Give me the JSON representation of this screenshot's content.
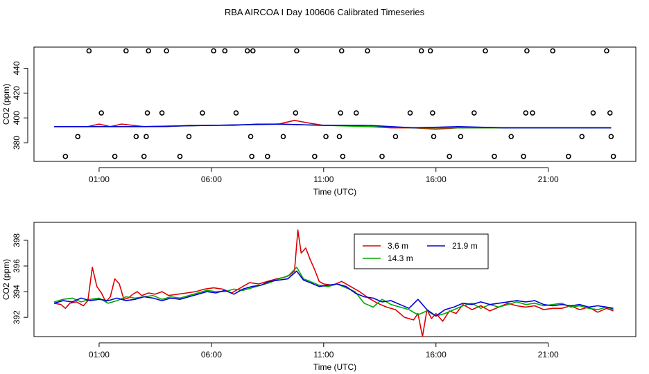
{
  "figure": {
    "title": "RBA AIRCOA I  Day 100606  Calibrated Timeseries"
  },
  "chart_data": [
    {
      "type": "line",
      "xlabel": "Time (UTC)",
      "ylabel": "CO2 (ppm)",
      "x_ticks": [
        {
          "label": "01:00",
          "value": 1
        },
        {
          "label": "06:00",
          "value": 6
        },
        {
          "label": "11:00",
          "value": 11
        },
        {
          "label": "16:00",
          "value": 16
        },
        {
          "label": "21:00",
          "value": 21
        }
      ],
      "y_ticks": [
        {
          "label": "380",
          "value": 380
        },
        {
          "label": "400",
          "value": 400
        },
        {
          "label": "420",
          "value": 420
        },
        {
          "label": "440",
          "value": 440
        }
      ],
      "xlim": [
        -1.9,
        24.9
      ],
      "ylim": [
        365,
        457
      ],
      "series": [
        {
          "color": "#dd0000",
          "x": [
            -1,
            0.5,
            1,
            1.5,
            2,
            3,
            4,
            5,
            6,
            7,
            8,
            9,
            9.7,
            10,
            10.3,
            11,
            12,
            13,
            14,
            15,
            16,
            17,
            18,
            19,
            20,
            21,
            22,
            23,
            23.8
          ],
          "values": [
            393,
            393,
            395,
            393,
            395,
            393,
            393,
            394,
            394,
            394,
            395,
            395,
            398,
            397,
            396,
            394,
            394,
            393,
            392,
            392,
            391,
            392,
            392,
            392,
            392,
            392,
            392,
            392,
            392
          ]
        },
        {
          "color": "#00aa00",
          "x": [
            -1,
            1,
            3,
            6,
            9,
            11,
            13,
            15,
            17,
            19,
            21,
            23.8
          ],
          "values": [
            393,
            393,
            393,
            394,
            395,
            394,
            393,
            392,
            392,
            392,
            392,
            392
          ]
        },
        {
          "color": "#0000dd",
          "x": [
            -1,
            1,
            3,
            6,
            9,
            11,
            13,
            15,
            17,
            19,
            21,
            23.8
          ],
          "values": [
            393,
            393,
            393,
            394,
            395,
            394,
            394,
            392,
            393,
            392,
            392,
            392
          ]
        },
        {
          "color": "#000000",
          "marker": "circle",
          "x": [
            -0.5,
            0.05,
            0.55,
            1.1,
            1.7,
            2.2,
            2.65,
            3.0,
            3.1,
            3.15,
            3.2,
            3.8,
            4.0,
            4.6,
            5.0,
            5.6,
            6.1,
            6.6,
            7.1,
            7.6,
            7.75,
            7.8,
            7.85,
            8.5,
            9.2,
            9.75,
            9.8,
            10.6,
            11.1,
            11.7,
            11.75,
            11.8,
            11.85,
            12.45,
            12.95,
            13.6,
            14.2,
            14.85,
            15.35,
            15.75,
            15.85,
            15.9,
            16.6,
            17.1,
            17.7,
            18.2,
            18.6,
            19.35,
            19.9,
            20.0,
            20.05,
            20.3,
            21.2,
            21.9,
            22.5,
            23.0,
            23.6,
            23.75,
            23.8,
            23.9
          ],
          "values": [
            369,
            385,
            454,
            404,
            369,
            454,
            385,
            369,
            385,
            404,
            454,
            404,
            454,
            369,
            385,
            404,
            454,
            454,
            404,
            454,
            385,
            369,
            454,
            369,
            385,
            404,
            454,
            369,
            385,
            385,
            404,
            454,
            369,
            404,
            454,
            369,
            385,
            404,
            454,
            454,
            404,
            385,
            369,
            385,
            404,
            454,
            369,
            385,
            369,
            404,
            454,
            404,
            454,
            369,
            385,
            404,
            454,
            404,
            385,
            369
          ]
        }
      ]
    },
    {
      "type": "line",
      "xlabel": "Time (UTC)",
      "ylabel": "CO2 (ppm)",
      "x_ticks": [
        {
          "label": "01:00",
          "value": 1
        },
        {
          "label": "06:00",
          "value": 6
        },
        {
          "label": "11:00",
          "value": 11
        },
        {
          "label": "16:00",
          "value": 16
        },
        {
          "label": "21:00",
          "value": 21
        }
      ],
      "y_ticks": [
        {
          "label": "392",
          "value": 392
        },
        {
          "label": "394",
          "value": 394
        },
        {
          "label": "396",
          "value": 396
        },
        {
          "label": "398",
          "value": 398
        }
      ],
      "xlim": [
        -1.9,
        24.9
      ],
      "ylim": [
        390.5,
        399.4
      ],
      "legend": "top-center",
      "series": [
        {
          "name": "3.6 m",
          "color": "#dd0000",
          "x": [
            -1,
            -0.7,
            -0.5,
            -0.3,
            0,
            0.3,
            0.5,
            0.7,
            0.9,
            1.1,
            1.3,
            1.5,
            1.7,
            1.9,
            2.1,
            2.3,
            2.5,
            2.7,
            2.9,
            3.2,
            3.5,
            3.8,
            4.1,
            4.5,
            4.9,
            5.3,
            5.7,
            6.1,
            6.5,
            6.9,
            7.3,
            7.7,
            8.1,
            8.5,
            8.9,
            9.2,
            9.5,
            9.7,
            9.85,
            10.0,
            10.2,
            10.4,
            10.6,
            10.8,
            11.0,
            11.4,
            11.8,
            12.2,
            12.6,
            13.0,
            13.4,
            13.8,
            14.2,
            14.6,
            15.0,
            15.2,
            15.4,
            15.6,
            15.8,
            16.0,
            16.3,
            16.6,
            16.9,
            17.2,
            17.6,
            18.0,
            18.4,
            18.8,
            19.2,
            19.6,
            20.0,
            20.4,
            20.8,
            21.2,
            21.6,
            22.0,
            22.4,
            22.8,
            23.2,
            23.6,
            23.9
          ],
          "values": [
            393.1,
            393.0,
            392.7,
            393.1,
            393.2,
            392.9,
            393.3,
            395.9,
            394.4,
            393.9,
            393.2,
            393.6,
            395.0,
            394.6,
            393.4,
            393.5,
            393.8,
            394.0,
            393.7,
            393.9,
            393.8,
            394.0,
            393.7,
            393.8,
            393.9,
            394.0,
            394.2,
            394.3,
            394.2,
            393.9,
            394.3,
            394.7,
            394.6,
            394.8,
            395.0,
            395.1,
            395.3,
            395.6,
            398.8,
            397.0,
            397.4,
            396.5,
            395.7,
            394.8,
            394.6,
            394.5,
            394.8,
            394.4,
            394.0,
            393.5,
            393.1,
            392.8,
            392.6,
            392.0,
            391.8,
            392.3,
            390.5,
            392.6,
            391.9,
            392.3,
            391.7,
            392.5,
            392.3,
            393.0,
            392.6,
            392.9,
            392.5,
            392.8,
            393.1,
            392.9,
            392.8,
            392.9,
            392.6,
            392.7,
            392.7,
            392.9,
            392.6,
            392.8,
            392.4,
            392.7,
            392.5
          ]
        },
        {
          "name": "14.3 m",
          "color": "#00aa00",
          "x": [
            -1,
            -0.6,
            -0.2,
            0.2,
            0.6,
            1.0,
            1.4,
            1.8,
            2.2,
            2.6,
            3.0,
            3.4,
            3.8,
            4.2,
            4.6,
            5.0,
            5.4,
            5.8,
            6.2,
            6.6,
            7.0,
            7.4,
            7.8,
            8.2,
            8.6,
            9.0,
            9.4,
            9.8,
            10.1,
            10.4,
            10.8,
            11.2,
            11.6,
            12.0,
            12.4,
            12.8,
            13.2,
            13.6,
            14.0,
            14.4,
            14.8,
            15.2,
            15.6,
            16.0,
            16.4,
            16.8,
            17.2,
            17.6,
            18.0,
            18.4,
            18.8,
            19.2,
            19.6,
            20.0,
            20.4,
            20.8,
            21.2,
            21.6,
            22.0,
            22.4,
            22.8,
            23.2,
            23.6,
            23.9
          ],
          "values": [
            393.2,
            393.4,
            393.5,
            393.2,
            393.4,
            393.5,
            393.1,
            393.3,
            393.6,
            393.5,
            393.6,
            393.7,
            393.4,
            393.6,
            393.5,
            393.7,
            393.9,
            394.1,
            394.0,
            394.0,
            394.2,
            394.1,
            394.3,
            394.5,
            394.7,
            395.0,
            395.2,
            395.9,
            395.0,
            394.8,
            394.5,
            394.4,
            394.6,
            394.3,
            394.0,
            393.1,
            392.8,
            393.4,
            393.0,
            392.8,
            392.6,
            392.2,
            392.5,
            392.1,
            392.3,
            392.6,
            392.9,
            393.1,
            392.7,
            393.0,
            392.8,
            393.0,
            393.2,
            393.0,
            393.1,
            392.9,
            393.0,
            393.1,
            392.8,
            392.9,
            392.7,
            392.6,
            392.8,
            392.6
          ]
        },
        {
          "name": "21.9 m",
          "color": "#0000dd",
          "x": [
            -1,
            -0.6,
            -0.2,
            0.2,
            0.6,
            1.0,
            1.4,
            1.8,
            2.2,
            2.6,
            3.0,
            3.4,
            3.8,
            4.2,
            4.6,
            5.0,
            5.4,
            5.8,
            6.2,
            6.6,
            7.0,
            7.4,
            7.8,
            8.2,
            8.6,
            9.0,
            9.4,
            9.8,
            10.1,
            10.4,
            10.8,
            11.2,
            11.6,
            12.0,
            12.4,
            12.8,
            13.2,
            13.6,
            14.0,
            14.4,
            14.8,
            15.2,
            15.6,
            16.0,
            16.4,
            16.8,
            17.2,
            17.6,
            18.0,
            18.4,
            18.8,
            19.2,
            19.6,
            20.0,
            20.4,
            20.8,
            21.2,
            21.6,
            22.0,
            22.4,
            22.8,
            23.2,
            23.6,
            23.9
          ],
          "values": [
            393.1,
            393.3,
            393.2,
            393.5,
            393.3,
            393.4,
            393.3,
            393.5,
            393.3,
            393.4,
            393.6,
            393.5,
            393.3,
            393.5,
            393.4,
            393.6,
            393.8,
            394.0,
            393.9,
            394.1,
            393.8,
            394.2,
            394.4,
            394.5,
            394.8,
            394.9,
            395.0,
            395.6,
            394.9,
            394.7,
            394.4,
            394.5,
            394.6,
            394.4,
            393.9,
            393.6,
            393.5,
            393.2,
            393.3,
            393.0,
            392.7,
            393.4,
            392.6,
            392.1,
            392.6,
            392.8,
            393.1,
            393.0,
            393.2,
            393.0,
            393.1,
            393.2,
            393.3,
            393.2,
            393.3,
            393.0,
            392.9,
            393.0,
            392.9,
            393.0,
            392.8,
            392.9,
            392.8,
            392.7
          ]
        }
      ]
    }
  ]
}
